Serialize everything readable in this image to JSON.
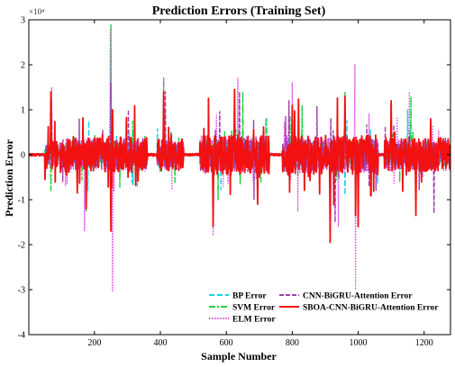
{
  "chart_data": {
    "type": "line",
    "title": "Prediction Errors (Training Set)",
    "xlabel": "Sample Number",
    "ylabel": "Prediction Error",
    "y_multiplier": "×10⁴",
    "xlim": [
      1,
      1280
    ],
    "ylim": [
      -4,
      3
    ],
    "x_ticks": [
      200,
      400,
      600,
      800,
      1000,
      1200
    ],
    "y_ticks": [
      -4,
      -3,
      -2,
      -1,
      0,
      1,
      2,
      3
    ],
    "grid": false,
    "legend_position": "bottom-right",
    "n_samples": 1280,
    "series": [
      {
        "name": "BP Error",
        "color": "#1ad3e6",
        "dash": "6,3",
        "width": 1.4,
        "values_note": "dense noisy error signal",
        "spikes": [
          [
            68,
            0.7
          ],
          [
            180,
            -0.8
          ],
          [
            250,
            2.3
          ],
          [
            415,
            1.0
          ],
          [
            560,
            -0.9
          ],
          [
            720,
            0.8
          ],
          [
            960,
            -0.9
          ],
          [
            1150,
            1.0
          ]
        ]
      },
      {
        "name": "SVM Error",
        "color": "#19d43f",
        "dash": "7,2,2,2",
        "width": 1.4,
        "spikes": [
          [
            68,
            -0.8
          ],
          [
            175,
            -1.25
          ],
          [
            250,
            2.9
          ],
          [
            410,
            1.7
          ],
          [
            575,
            -1.0
          ],
          [
            650,
            1.4
          ],
          [
            830,
            1.1
          ],
          [
            960,
            1.4
          ],
          [
            1160,
            1.3
          ]
        ]
      },
      {
        "name": "ELM Error",
        "color": "#e24be6",
        "dash": "1.5,1.5",
        "width": 1.2,
        "spikes": [
          [
            70,
            1.5
          ],
          [
            170,
            -1.7
          ],
          [
            248,
            2.8
          ],
          [
            255,
            -3.05
          ],
          [
            410,
            1.7
          ],
          [
            560,
            -1.8
          ],
          [
            635,
            1.7
          ],
          [
            800,
            1.6
          ],
          [
            940,
            -1.6
          ],
          [
            990,
            2.0
          ],
          [
            992,
            -3.0
          ],
          [
            1155,
            1.4
          ]
        ]
      },
      {
        "name": "CNN-BiGRU-Attention Error",
        "color": "#a040b0",
        "dash": "5,2",
        "width": 1.4,
        "spikes": [
          [
            70,
            1.2
          ],
          [
            175,
            -1.1
          ],
          [
            250,
            1.6
          ],
          [
            415,
            1.4
          ],
          [
            560,
            -1.5
          ],
          [
            640,
            1.4
          ],
          [
            790,
            1.2
          ],
          [
            930,
            -1.5
          ],
          [
            1100,
            1.1
          ],
          [
            1230,
            -1.3
          ]
        ]
      },
      {
        "name": "SBOA-CNN-BiGRU-Attention Error",
        "color": "#f21010",
        "dash": "",
        "width": 1.8,
        "spikes": [
          [
            68,
            1.4
          ],
          [
            115,
            -0.45
          ],
          [
            148,
            -0.85
          ],
          [
            175,
            -1.2
          ],
          [
            250,
            -1.7
          ],
          [
            255,
            1.0
          ],
          [
            410,
            1.4
          ],
          [
            560,
            -1.6
          ],
          [
            625,
            1.45
          ],
          [
            695,
            -1.1
          ],
          [
            800,
            1.1
          ],
          [
            915,
            -1.95
          ],
          [
            960,
            1.3
          ],
          [
            1000,
            -1.6
          ],
          [
            1100,
            1.2
          ],
          [
            1175,
            -1.35
          ],
          [
            1220,
            0.8
          ]
        ]
      }
    ],
    "legend": {
      "col1": [
        "BP Error",
        "SVM Error",
        "ELM Error"
      ],
      "col2": [
        "CNN-BiGRU-Attention Error",
        "SBOA-CNN-BiGRU-Attention Error"
      ]
    }
  }
}
